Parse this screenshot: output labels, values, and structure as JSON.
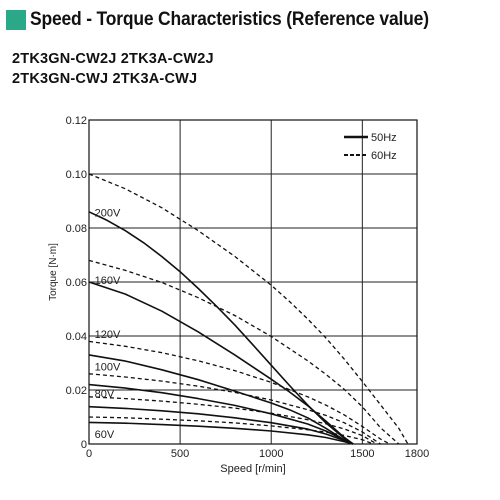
{
  "header": {
    "title": "Speed - Torque Characteristics (Reference value)",
    "accent_color": "#2aa888"
  },
  "models": [
    "2TK3GN-CW2J 2TK3A-CW2J",
    "2TK3GN-CWJ 2TK3A-CWJ"
  ],
  "chart_data": {
    "type": "line",
    "xlabel": "Speed [r/min]",
    "ylabel": "Torque [N·m]",
    "xlim": [
      0,
      1800
    ],
    "ylim": [
      0,
      0.12
    ],
    "xticks": [
      0,
      500,
      1000,
      1500,
      1800
    ],
    "yticks": [
      0,
      0.02,
      0.04,
      0.06,
      0.08,
      0.1,
      0.12
    ],
    "ytick_labels": [
      "0",
      "0.02",
      "0.04",
      "0.06",
      "0.08",
      "0.10",
      "0.12"
    ],
    "grid": true,
    "legend": {
      "position": "top-right",
      "entries": [
        {
          "label": "50Hz",
          "style": "solid"
        },
        {
          "label": "60Hz",
          "style": "dashed"
        }
      ]
    },
    "voltage_labels": [
      {
        "text": "200V",
        "x": 20,
        "y": 0.0843
      },
      {
        "text": "160V",
        "x": 20,
        "y": 0.0593
      },
      {
        "text": "120V",
        "x": 20,
        "y": 0.0393
      },
      {
        "text": "100V",
        "x": 20,
        "y": 0.0273
      },
      {
        "text": "80V",
        "x": 20,
        "y": 0.0173
      },
      {
        "text": "60V",
        "x": 20,
        "y": 0.0023
      }
    ],
    "series": [
      {
        "style": "solid",
        "x": [
          0,
          100,
          200,
          300,
          400,
          500,
          600,
          700,
          800,
          900,
          1000,
          1100,
          1200,
          1300,
          1400,
          1450
        ],
        "y": [
          0.086,
          0.0828,
          0.079,
          0.0745,
          0.0694,
          0.0638,
          0.0576,
          0.051,
          0.0441,
          0.0367,
          0.0292,
          0.0217,
          0.0144,
          0.0078,
          0.0022,
          0.0
        ]
      },
      {
        "style": "solid",
        "x": [
          0,
          200,
          400,
          600,
          800,
          900,
          1000,
          1100,
          1200,
          1300,
          1400,
          1450
        ],
        "y": [
          0.06,
          0.0555,
          0.0492,
          0.0415,
          0.033,
          0.0285,
          0.024,
          0.0193,
          0.0142,
          0.0085,
          0.0025,
          0.0
        ]
      },
      {
        "style": "solid",
        "x": [
          0,
          200,
          400,
          600,
          800,
          1000,
          1100,
          1200,
          1300,
          1400,
          1450
        ],
        "y": [
          0.033,
          0.0307,
          0.0275,
          0.0238,
          0.0196,
          0.0152,
          0.0127,
          0.0097,
          0.0058,
          0.0015,
          0.0
        ]
      },
      {
        "style": "solid",
        "x": [
          0,
          200,
          400,
          600,
          800,
          1000,
          1200,
          1300,
          1400,
          1450
        ],
        "y": [
          0.022,
          0.0207,
          0.019,
          0.0168,
          0.0143,
          0.0112,
          0.0074,
          0.0048,
          0.0015,
          0.0
        ]
      },
      {
        "style": "solid",
        "x": [
          0,
          200,
          400,
          600,
          800,
          1000,
          1200,
          1300,
          1400,
          1450
        ],
        "y": [
          0.0138,
          0.0132,
          0.0123,
          0.0112,
          0.0097,
          0.0079,
          0.0055,
          0.0037,
          0.0013,
          0.0
        ]
      },
      {
        "style": "solid",
        "x": [
          0,
          200,
          400,
          600,
          800,
          1000,
          1200,
          1300,
          1400,
          1450
        ],
        "y": [
          0.008,
          0.0077,
          0.0072,
          0.0066,
          0.0058,
          0.0048,
          0.0034,
          0.0024,
          0.0009,
          0.0
        ]
      },
      {
        "style": "dashed",
        "x": [
          0,
          200,
          400,
          600,
          800,
          1000,
          1100,
          1200,
          1300,
          1400,
          1500,
          1600,
          1700,
          1750
        ],
        "y": [
          0.1,
          0.0945,
          0.0875,
          0.079,
          0.0695,
          0.0588,
          0.0528,
          0.0463,
          0.0393,
          0.0315,
          0.0232,
          0.0145,
          0.0058,
          0.0
        ]
      },
      {
        "style": "dashed",
        "x": [
          0,
          200,
          400,
          600,
          800,
          1000,
          1200,
          1300,
          1400,
          1500,
          1600,
          1700
        ],
        "y": [
          0.068,
          0.0643,
          0.0598,
          0.0542,
          0.0476,
          0.0398,
          0.0308,
          0.0258,
          0.0203,
          0.0138,
          0.006,
          0.0
        ]
      },
      {
        "style": "dashed",
        "x": [
          0,
          200,
          400,
          600,
          800,
          1000,
          1200,
          1300,
          1400,
          1500,
          1600,
          1650
        ],
        "y": [
          0.038,
          0.0362,
          0.0338,
          0.0308,
          0.0272,
          0.0228,
          0.0175,
          0.0144,
          0.0108,
          0.0065,
          0.0018,
          0.0
        ]
      },
      {
        "style": "dashed",
        "x": [
          0,
          200,
          400,
          600,
          800,
          1000,
          1200,
          1300,
          1400,
          1500,
          1600
        ],
        "y": [
          0.026,
          0.0248,
          0.0233,
          0.0214,
          0.0191,
          0.0163,
          0.0127,
          0.0106,
          0.0079,
          0.0045,
          0.0
        ]
      },
      {
        "style": "dashed",
        "x": [
          0,
          200,
          400,
          600,
          800,
          1000,
          1200,
          1300,
          1400,
          1500,
          1580
        ],
        "y": [
          0.0175,
          0.0168,
          0.0159,
          0.0147,
          0.0133,
          0.0114,
          0.009,
          0.0075,
          0.0056,
          0.0031,
          0.0
        ]
      },
      {
        "style": "dashed",
        "x": [
          0,
          200,
          400,
          600,
          800,
          1000,
          1200,
          1300,
          1400,
          1500,
          1560
        ],
        "y": [
          0.01,
          0.0097,
          0.0092,
          0.0086,
          0.0078,
          0.0067,
          0.0053,
          0.0044,
          0.0032,
          0.0016,
          0.0
        ]
      }
    ]
  }
}
